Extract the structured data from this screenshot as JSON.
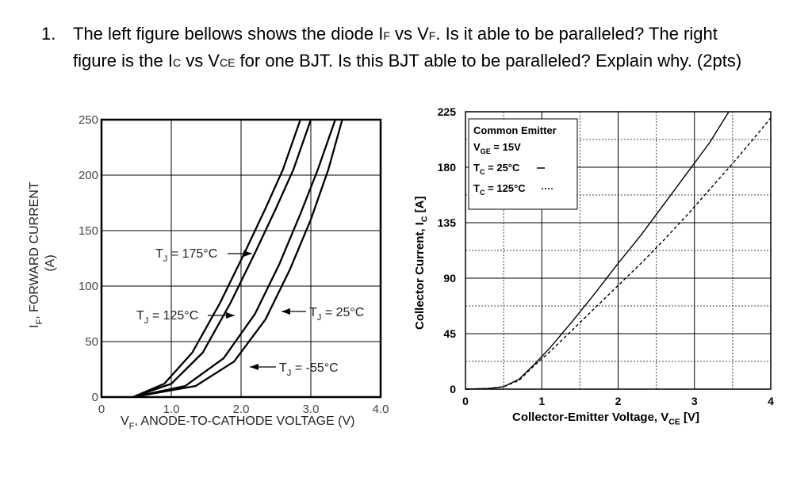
{
  "question": {
    "number": "1.",
    "line1": "The left figure bellows shows the diode IF vs VF. Is it able to be paralleled? The right",
    "line1_parts": [
      "The left figure bellows shows the diode I",
      "F",
      " vs V",
      "F",
      ". Is it able to be paralleled? The right"
    ],
    "line2_parts": [
      "figure is the I",
      "C",
      " vs V",
      "CE",
      " for one BJT. Is this BJT able to be paralleled? Explain why.   (2pts)"
    ]
  },
  "chart_data": [
    {
      "type": "line",
      "xlabel": "V",
      "xlabel_sub": "F",
      "xlabel_rest": ", ANODE-TO-CATHODE VOLTAGE (V)",
      "ylabel": "I",
      "ylabel_sub": "F",
      "ylabel_rest": ", FORWARD CURRENT",
      "ylabel_unit": "(A)",
      "xlim": [
        0,
        4.0
      ],
      "ylim": [
        0,
        250
      ],
      "x_ticks": [
        "0",
        "1.0",
        "2.0",
        "3.0",
        "4.0"
      ],
      "y_ticks": [
        "0",
        "50",
        "100",
        "150",
        "200",
        "250"
      ],
      "grid": true,
      "series": [
        {
          "name": "TJ = 175°C",
          "label_main": "T",
          "label_sub": "J",
          "label_rest": " = 175°C",
          "points": [
            [
              0.45,
              0
            ],
            [
              0.9,
              12
            ],
            [
              1.3,
              40
            ],
            [
              1.7,
              85
            ],
            [
              2.05,
              130
            ],
            [
              2.35,
              170
            ],
            [
              2.6,
              205
            ],
            [
              2.85,
              250
            ]
          ]
        },
        {
          "name": "TJ = 125°C",
          "label_main": "T",
          "label_sub": "J",
          "label_rest": " = 125°C",
          "points": [
            [
              0.45,
              0
            ],
            [
              1.0,
              12
            ],
            [
              1.45,
              40
            ],
            [
              1.85,
              85
            ],
            [
              2.2,
              130
            ],
            [
              2.5,
              170
            ],
            [
              2.75,
              205
            ],
            [
              3.0,
              250
            ]
          ]
        },
        {
          "name": "TJ = 25°C",
          "label_main": "T",
          "label_sub": "J",
          "label_rest": " = 25°C",
          "points": [
            [
              0.45,
              0
            ],
            [
              1.2,
              10
            ],
            [
              1.75,
              35
            ],
            [
              2.2,
              75
            ],
            [
              2.55,
              120
            ],
            [
              2.85,
              165
            ],
            [
              3.1,
              205
            ],
            [
              3.35,
              250
            ]
          ]
        },
        {
          "name": "TJ = -55°C",
          "label_main": "T",
          "label_sub": "J",
          "label_rest": " = -55°C",
          "points": [
            [
              0.45,
              0
            ],
            [
              1.35,
              10
            ],
            [
              1.9,
              32
            ],
            [
              2.35,
              70
            ],
            [
              2.7,
              115
            ],
            [
              3.0,
              160
            ],
            [
              3.25,
              205
            ],
            [
              3.45,
              250
            ]
          ]
        }
      ]
    },
    {
      "type": "line",
      "xlabel": "Collector-Emitter Voltage, V",
      "xlabel_sub": "CE",
      "xlabel_rest": " [V]",
      "ylabel": "Collector Current, I",
      "ylabel_sub": "C",
      "ylabel_rest": " [A]",
      "xlim": [
        0,
        4
      ],
      "ylim": [
        0,
        225
      ],
      "x_ticks": [
        "0",
        "1",
        "2",
        "3",
        "4"
      ],
      "y_ticks": [
        "0",
        "45",
        "90",
        "135",
        "180",
        "225"
      ],
      "grid": true,
      "legend": {
        "title": "Common Emitter",
        "line2_main": "V",
        "line2_sub": "GE",
        "line2_rest": " = 15V",
        "line3_main": "T",
        "line3_sub": "C",
        "line3_rest": " = 25°C",
        "line4_main": "T",
        "line4_sub": "C",
        "line4_rest": " = 125°C",
        "placement": "top-left"
      },
      "series": [
        {
          "name": "TC = 25°C",
          "style": "solid",
          "points": [
            [
              0,
              0
            ],
            [
              0.3,
              0.5
            ],
            [
              0.5,
              2
            ],
            [
              0.7,
              8
            ],
            [
              0.9,
              20
            ],
            [
              1.1,
              33
            ],
            [
              1.4,
              55
            ],
            [
              1.7,
              78
            ],
            [
              2.0,
              102
            ],
            [
              2.3,
              125
            ],
            [
              2.6,
              150
            ],
            [
              2.9,
              175
            ],
            [
              3.2,
              200
            ],
            [
              3.45,
              225
            ]
          ]
        },
        {
          "name": "TC = 125°C",
          "style": "dashed",
          "points": [
            [
              0,
              0
            ],
            [
              0.3,
              0.5
            ],
            [
              0.5,
              2
            ],
            [
              0.7,
              7
            ],
            [
              0.9,
              19
            ],
            [
              1.1,
              30
            ],
            [
              1.4,
              48
            ],
            [
              1.7,
              66
            ],
            [
              2.0,
              84
            ],
            [
              2.3,
              102
            ],
            [
              2.6,
              121
            ],
            [
              2.9,
              141
            ],
            [
              3.2,
              162
            ],
            [
              3.5,
              183
            ],
            [
              3.8,
              205
            ],
            [
              4.0,
              220
            ]
          ]
        }
      ]
    }
  ]
}
